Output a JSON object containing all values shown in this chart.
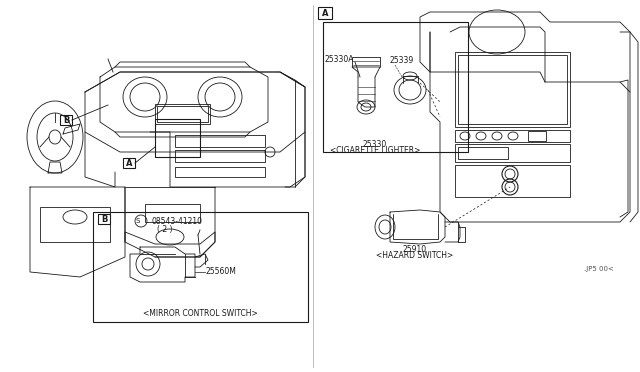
{
  "bg_color": "#ffffff",
  "line_color": "#1a1a1a",
  "fig_width": 6.4,
  "fig_height": 3.72,
  "dpi": 100,
  "parts": {
    "label_A": "A",
    "label_B": "B",
    "part_25330": "25330",
    "part_25330_desc": "<CIGARETTE LIGHTER>",
    "part_25330A": "25330A",
    "part_25339": "25339",
    "part_25560M": "25560M",
    "part_08543": "08543-41210",
    "part_08543_qty": "( 2 )",
    "part_25910": "25910",
    "part_25910_desc": "<HAZARD SWITCH>",
    "part_mirror_desc": "<MIRROR CONTROL SWITCH>",
    "watermark": ".JP5 00<"
  }
}
